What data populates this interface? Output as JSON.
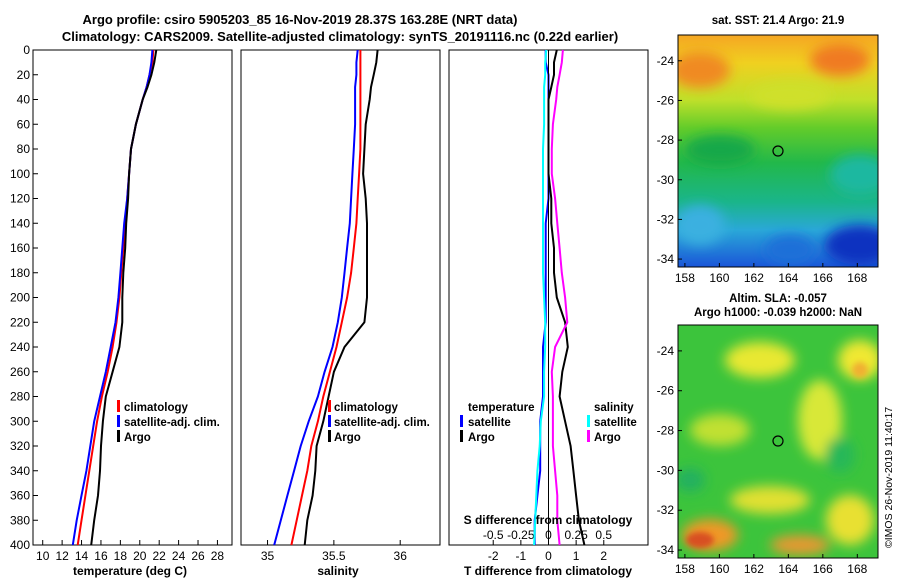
{
  "header": {
    "line1": "Argo profile: csiro 5905203_85 16-Nov-2019 28.37S 163.28E (NRT data)",
    "line2": "Climatology: CARS2009. Satellite-adjusted climatology: synTS_20191116.nc (0.22d earlier)"
  },
  "colors": {
    "climatology": "#ff0000",
    "satellite": "#0000ff",
    "argo": "#000000",
    "satellite_s": "#00ffff",
    "argo_s": "#ff00ff"
  },
  "depth_ticks": [
    0,
    20,
    40,
    60,
    80,
    100,
    120,
    140,
    160,
    180,
    200,
    220,
    240,
    260,
    280,
    300,
    320,
    340,
    360,
    380,
    400
  ],
  "chart_data": [
    {
      "type": "line",
      "panel": "temperature",
      "xlabel": "temperature (deg C)",
      "ylabel": "depth",
      "xlim": [
        9,
        29.5
      ],
      "ylim": [
        400,
        0
      ],
      "xticks": [
        10,
        12,
        14,
        16,
        18,
        20,
        22,
        24,
        26,
        28
      ],
      "depth": [
        0,
        10,
        20,
        30,
        40,
        60,
        80,
        100,
        120,
        140,
        160,
        180,
        200,
        220,
        240,
        260,
        280,
        300,
        320,
        340,
        360,
        380,
        400
      ],
      "legend": [
        "climatology",
        "satellite-adj. clim.",
        "Argo"
      ],
      "series": [
        {
          "name": "climatology",
          "values": [
            21.4,
            21.3,
            21.0,
            20.7,
            20.3,
            19.6,
            19.1,
            18.9,
            18.7,
            18.5,
            18.3,
            18.1,
            17.9,
            17.6,
            17.2,
            16.7,
            16.1,
            15.6,
            15.2,
            14.8,
            14.4,
            14.0,
            13.6
          ]
        },
        {
          "name": "satellite-adj. clim.",
          "values": [
            21.3,
            21.2,
            21.0,
            20.7,
            20.3,
            19.6,
            19.1,
            18.9,
            18.7,
            18.4,
            18.2,
            18.0,
            17.8,
            17.5,
            17.0,
            16.5,
            15.9,
            15.3,
            14.9,
            14.5,
            14.0,
            13.5,
            13.1
          ]
        },
        {
          "name": "Argo",
          "values": [
            21.7,
            21.5,
            21.2,
            20.8,
            20.3,
            19.6,
            19.1,
            18.9,
            18.8,
            18.6,
            18.5,
            18.3,
            18.2,
            18.2,
            17.9,
            17.2,
            16.5,
            16.2,
            16.0,
            15.9,
            15.7,
            15.3,
            15.0
          ]
        }
      ]
    },
    {
      "type": "line",
      "panel": "salinity",
      "xlabel": "salinity",
      "ylabel": "depth",
      "xlim": [
        34.8,
        36.3
      ],
      "ylim": [
        400,
        0
      ],
      "xticks": [
        "35",
        "35.5",
        "36"
      ],
      "depth": [
        0,
        10,
        20,
        30,
        40,
        60,
        80,
        100,
        120,
        140,
        160,
        180,
        200,
        220,
        240,
        260,
        280,
        300,
        320,
        340,
        360,
        380,
        400
      ],
      "legend": [
        "climatology",
        "satellite-adj. clim.",
        "Argo"
      ],
      "series": [
        {
          "name": "climatology",
          "values": [
            35.7,
            35.7,
            35.7,
            35.7,
            35.7,
            35.7,
            35.7,
            35.69,
            35.68,
            35.67,
            35.65,
            35.63,
            35.6,
            35.56,
            35.52,
            35.47,
            35.42,
            35.38,
            35.33,
            35.3,
            35.26,
            35.22,
            35.18
          ]
        },
        {
          "name": "satellite-adj. clim.",
          "values": [
            35.68,
            35.67,
            35.67,
            35.66,
            35.66,
            35.66,
            35.65,
            35.64,
            35.63,
            35.62,
            35.6,
            35.58,
            35.56,
            35.53,
            35.49,
            35.43,
            35.38,
            35.31,
            35.25,
            35.2,
            35.15,
            35.1,
            35.05
          ]
        },
        {
          "name": "Argo",
          "values": [
            35.83,
            35.82,
            35.8,
            35.78,
            35.77,
            35.74,
            35.73,
            35.72,
            35.74,
            35.75,
            35.75,
            35.75,
            35.75,
            35.73,
            35.58,
            35.5,
            35.46,
            35.42,
            35.37,
            35.36,
            35.34,
            35.3,
            35.28
          ]
        }
      ]
    },
    {
      "type": "line",
      "panel": "difference",
      "xlabel": "T difference from climatology",
      "xlabel_top": "S difference from climatology",
      "ylabel": "depth",
      "xlim": [
        -3.6,
        3.6
      ],
      "ylim": [
        400,
        0
      ],
      "xticks": [
        "-2",
        "-1",
        "0",
        "1",
        "2"
      ],
      "xticks_top": [
        "-0.5",
        "-0.25",
        "0",
        "0.25",
        "0.5"
      ],
      "depth": [
        0,
        10,
        20,
        30,
        40,
        60,
        80,
        100,
        120,
        140,
        160,
        180,
        200,
        220,
        240,
        260,
        280,
        300,
        320,
        340,
        360,
        380,
        400
      ],
      "legend_temperature": {
        "title": "temperature",
        "items": [
          "satellite",
          "Argo"
        ]
      },
      "legend_salinity": {
        "title": "salinity",
        "items": [
          "satellite",
          "Argo"
        ]
      },
      "series": [
        {
          "name": "temperature satellite",
          "values": [
            -0.1,
            -0.1,
            0.0,
            0.0,
            0.0,
            0.0,
            0.0,
            0.0,
            0.0,
            -0.1,
            -0.1,
            -0.1,
            -0.1,
            -0.1,
            -0.2,
            -0.2,
            -0.2,
            -0.3,
            -0.3,
            -0.3,
            -0.4,
            -0.5,
            -0.5
          ]
        },
        {
          "name": "temperature Argo",
          "values": [
            0.3,
            0.2,
            0.2,
            0.1,
            0.0,
            0.0,
            0.0,
            0.0,
            0.1,
            0.1,
            0.2,
            0.2,
            0.3,
            0.6,
            0.7,
            0.5,
            0.4,
            0.6,
            0.8,
            0.9,
            1.0,
            1.1,
            1.3
          ]
        },
        {
          "name": "salinity satellite",
          "values": [
            -0.02,
            -0.03,
            -0.03,
            -0.04,
            -0.04,
            -0.04,
            -0.05,
            -0.05,
            -0.05,
            -0.05,
            -0.05,
            -0.05,
            -0.04,
            -0.03,
            -0.03,
            -0.04,
            -0.04,
            -0.07,
            -0.08,
            -0.1,
            -0.11,
            -0.12,
            -0.13
          ]
        },
        {
          "name": "salinity Argo",
          "values": [
            0.13,
            0.12,
            0.1,
            0.08,
            0.07,
            0.04,
            0.03,
            0.03,
            0.06,
            0.08,
            0.1,
            0.12,
            0.15,
            0.17,
            0.06,
            0.03,
            0.04,
            0.04,
            0.04,
            0.06,
            0.08,
            0.08,
            0.1
          ]
        }
      ]
    }
  ],
  "maps": {
    "sst": {
      "title": "sat. SST: 21.4 Argo: 21.9",
      "xticks": [
        "158",
        "160",
        "162",
        "164",
        "166",
        "168"
      ],
      "yticks": [
        "-24",
        "-26",
        "-28",
        "-30",
        "-32",
        "-34"
      ]
    },
    "sla": {
      "title1": "Altim. SLA: -0.057",
      "title2": "Argo h1000: -0.039 h2000: NaN",
      "xticks": [
        "158",
        "160",
        "162",
        "164",
        "166",
        "168"
      ],
      "yticks": [
        "-24",
        "-26",
        "-28",
        "-30",
        "-32",
        "-34"
      ]
    }
  },
  "credit": "©IMOS 26-Nov-2019 11:40:17"
}
